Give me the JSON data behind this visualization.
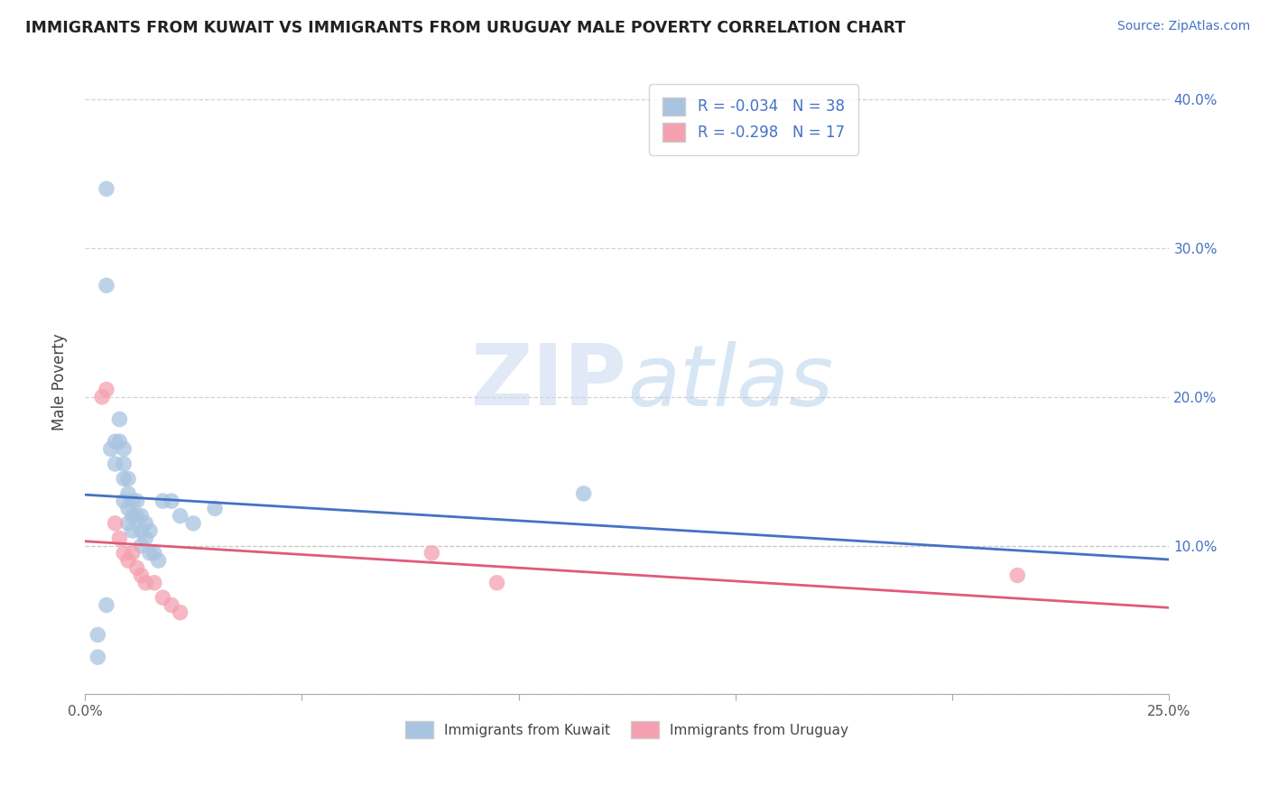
{
  "title": "IMMIGRANTS FROM KUWAIT VS IMMIGRANTS FROM URUGUAY MALE POVERTY CORRELATION CHART",
  "source": "Source: ZipAtlas.com",
  "ylabel": "Male Poverty",
  "xlim": [
    0.0,
    0.25
  ],
  "ylim": [
    0.0,
    0.42
  ],
  "kuwait_R": -0.034,
  "kuwait_N": 38,
  "uruguay_R": -0.298,
  "uruguay_N": 17,
  "kuwait_color": "#a8c4e0",
  "uruguay_color": "#f4a0b0",
  "kuwait_line_color": "#4472c4",
  "uruguay_line_color": "#e05a7a",
  "background_color": "#ffffff",
  "grid_color": "#c8c8c8",
  "kuwait_x": [
    0.003,
    0.003,
    0.005,
    0.005,
    0.006,
    0.007,
    0.007,
    0.008,
    0.008,
    0.009,
    0.009,
    0.009,
    0.009,
    0.01,
    0.01,
    0.01,
    0.01,
    0.011,
    0.011,
    0.011,
    0.012,
    0.012,
    0.013,
    0.013,
    0.013,
    0.014,
    0.014,
    0.015,
    0.015,
    0.016,
    0.017,
    0.018,
    0.02,
    0.022,
    0.025,
    0.03,
    0.115,
    0.005
  ],
  "kuwait_y": [
    0.04,
    0.025,
    0.34,
    0.275,
    0.165,
    0.17,
    0.155,
    0.185,
    0.17,
    0.165,
    0.155,
    0.145,
    0.13,
    0.145,
    0.135,
    0.125,
    0.115,
    0.13,
    0.12,
    0.11,
    0.13,
    0.12,
    0.12,
    0.11,
    0.1,
    0.115,
    0.105,
    0.11,
    0.095,
    0.095,
    0.09,
    0.13,
    0.13,
    0.12,
    0.115,
    0.125,
    0.135,
    0.06
  ],
  "uruguay_x": [
    0.004,
    0.005,
    0.007,
    0.008,
    0.009,
    0.01,
    0.011,
    0.012,
    0.013,
    0.014,
    0.016,
    0.018,
    0.02,
    0.022,
    0.08,
    0.095,
    0.215
  ],
  "uruguay_y": [
    0.2,
    0.205,
    0.115,
    0.105,
    0.095,
    0.09,
    0.095,
    0.085,
    0.08,
    0.075,
    0.075,
    0.065,
    0.06,
    0.055,
    0.095,
    0.075,
    0.08
  ]
}
